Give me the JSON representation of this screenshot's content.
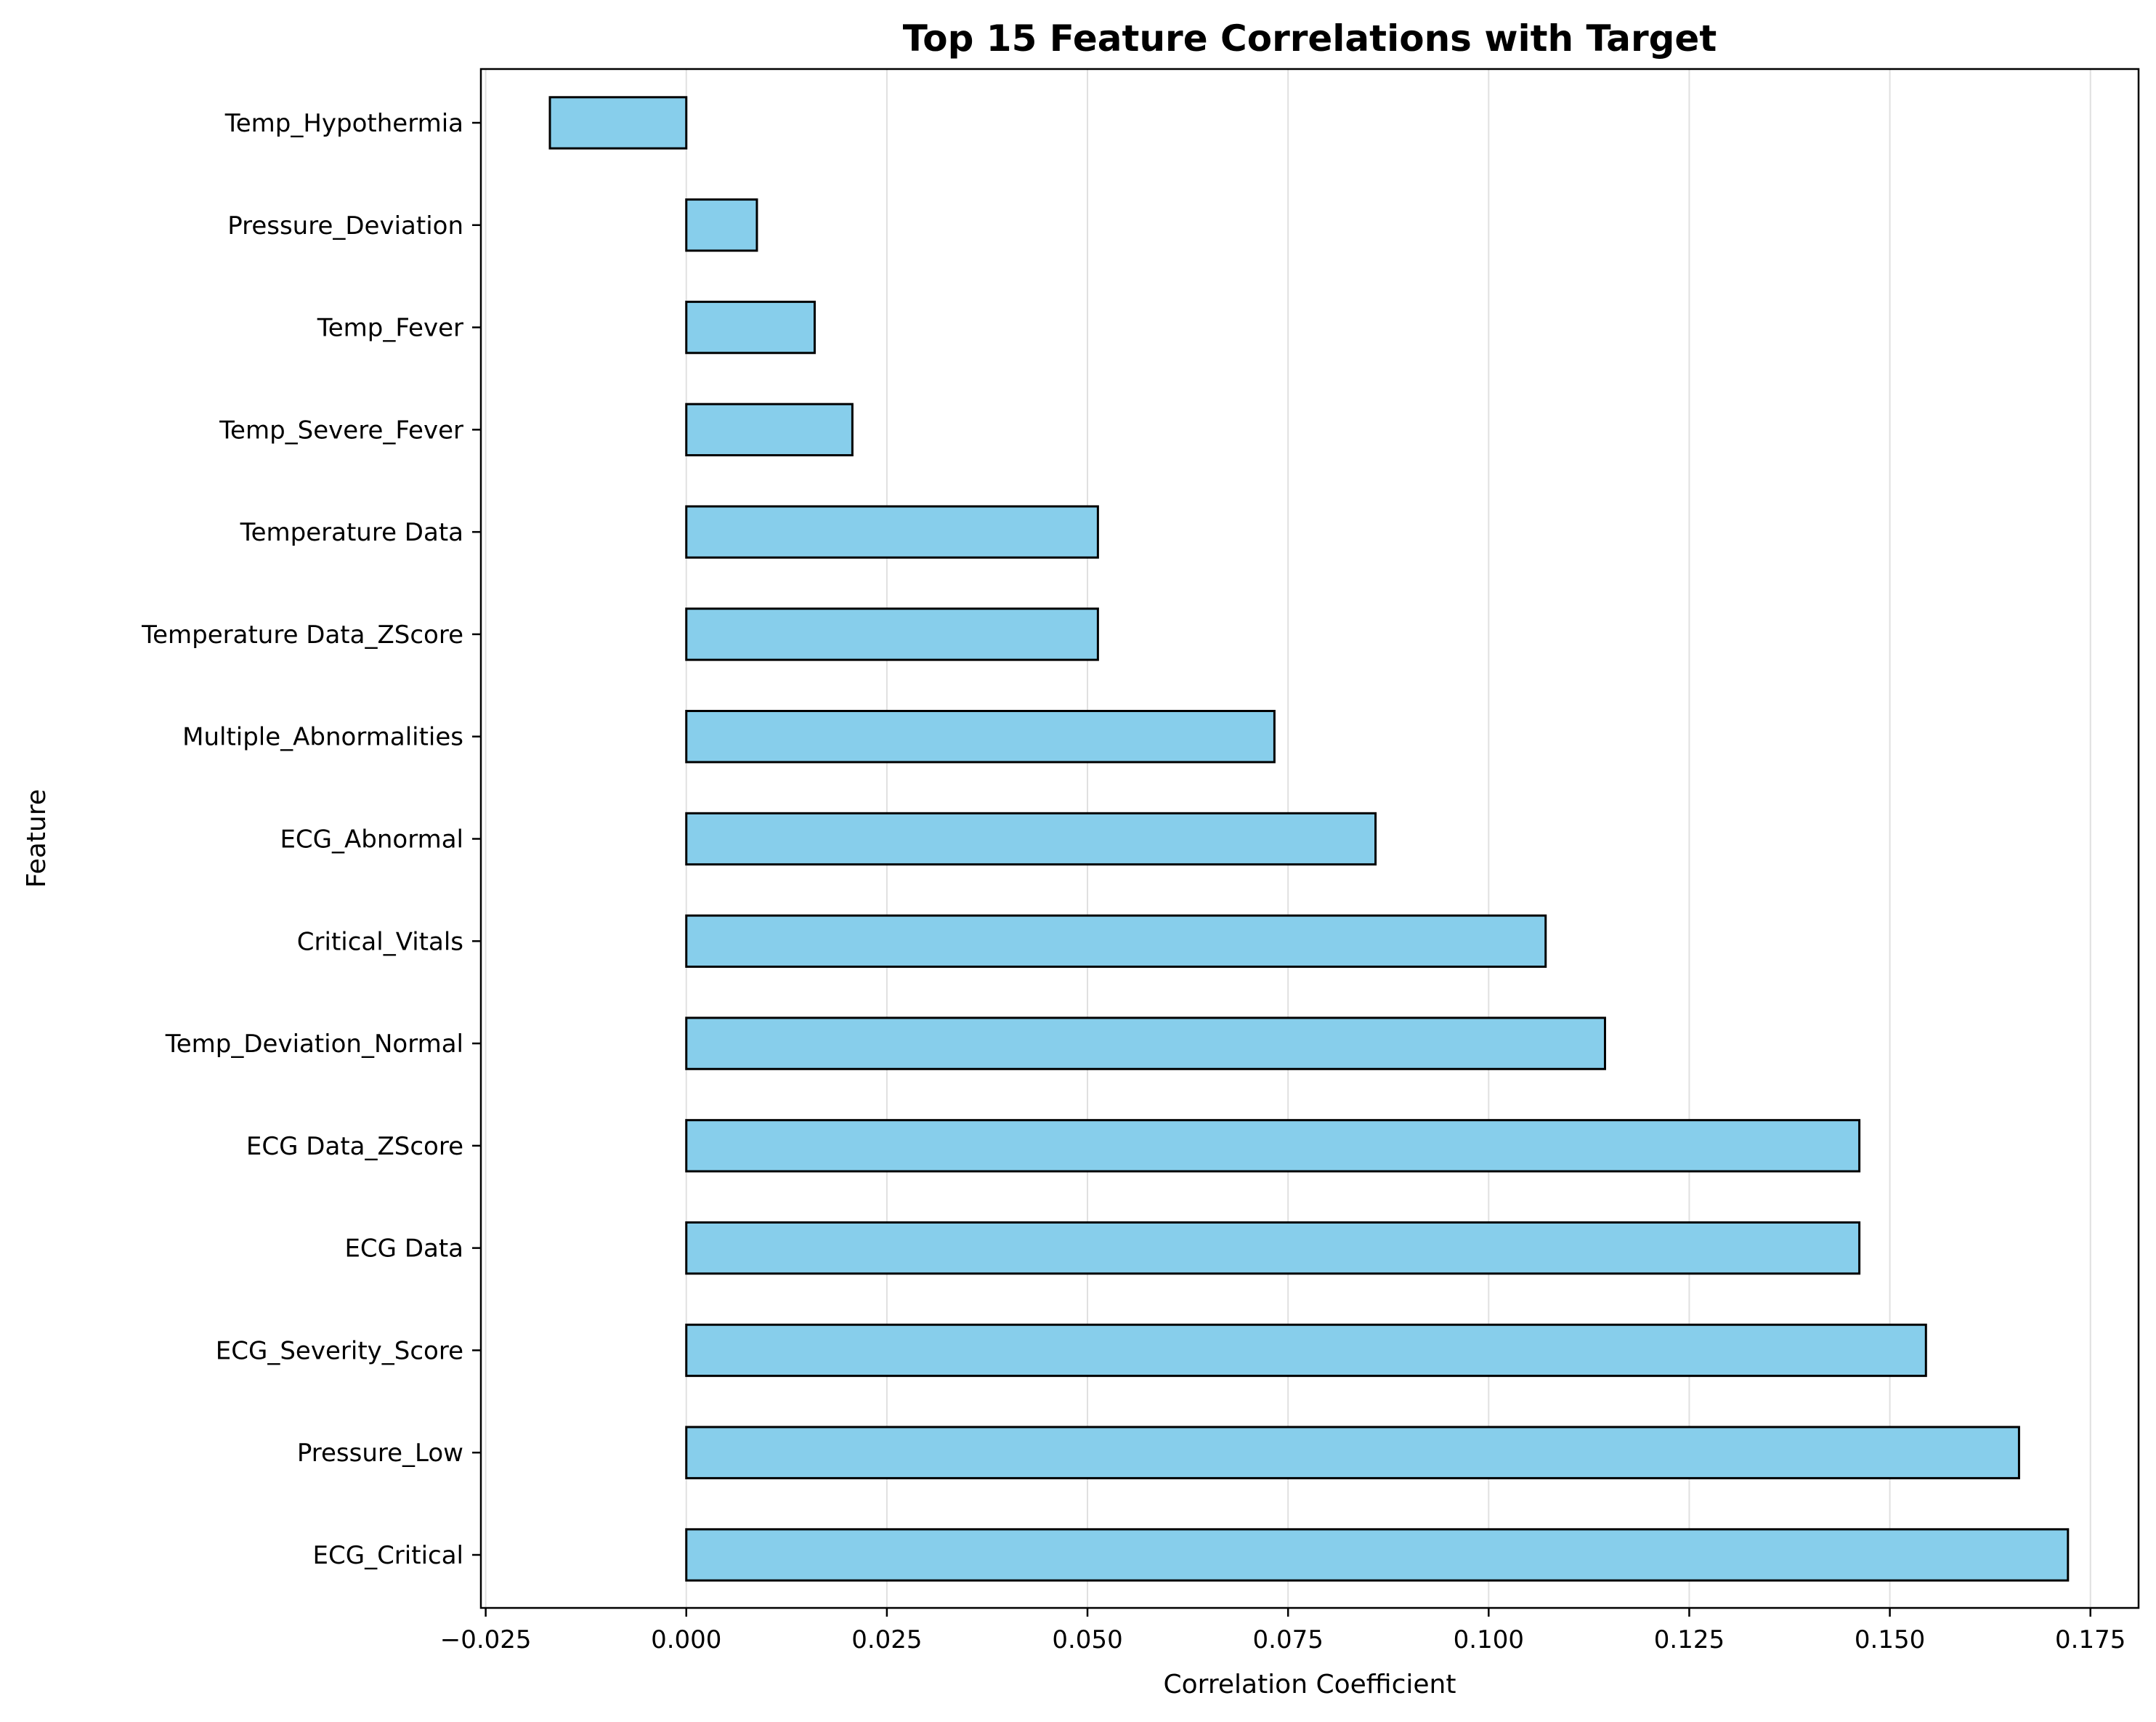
{
  "chart_data": {
    "type": "bar",
    "orientation": "horizontal",
    "title": "Top 15 Feature Correlations with Target",
    "xlabel": "Correlation Coefficient",
    "ylabel": "Feature",
    "categories": [
      "Temp_Hypothermia",
      "Pressure_Deviation",
      "Temp_Fever",
      "Temp_Severe_Fever",
      "Temperature Data",
      "Temperature Data_ZScore",
      "Multiple_Abnormalities",
      "ECG_Abnormal",
      "Critical_Vitals",
      "Temp_Deviation_Normal",
      "ECG Data_ZScore",
      "ECG Data",
      "ECG_Severity_Score",
      "Pressure_Low",
      "ECG_Critical"
    ],
    "values": [
      -0.017,
      0.0088,
      0.016,
      0.0207,
      0.0513,
      0.0513,
      0.0733,
      0.0859,
      0.1071,
      0.1145,
      0.1462,
      0.1462,
      0.1545,
      0.1661,
      0.1722
    ],
    "xlim": [
      -0.0256,
      0.181
    ],
    "xticks": [
      -0.025,
      0.0,
      0.025,
      0.05,
      0.075,
      0.1,
      0.125,
      0.15,
      0.175
    ],
    "xtick_labels": [
      "−0.025",
      "0.000",
      "0.025",
      "0.050",
      "0.075",
      "0.100",
      "0.125",
      "0.150",
      "0.175"
    ],
    "grid": "x",
    "bar_color": "#87ceeb",
    "edge_color": "#000000",
    "grid_color": "#e0e0e0"
  }
}
